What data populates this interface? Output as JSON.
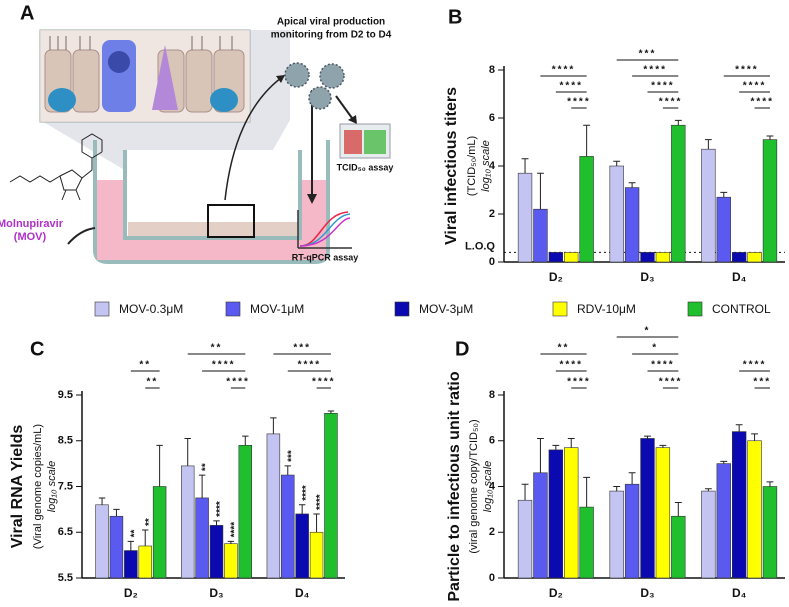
{
  "panel_a": {
    "letter": "A",
    "monitoring": [
      "Apical viral production",
      "monitoring from D2 to D4"
    ],
    "tcid_assay": "TCID₅₀ assay",
    "pcr_assay": "RT-qPCR assay",
    "drug": [
      "Molnupiravir",
      "(MOV)"
    ]
  },
  "chart_data": [
    {
      "type": "bar",
      "panel": "B",
      "y_label": [
        "Viral infectious titers",
        "(TCID₅₀/mL)",
        "log₁₀ scale"
      ],
      "categories": [
        "D₂",
        "D₃",
        "D₄"
      ],
      "ylim": [
        0,
        8
      ],
      "yticks": [
        0,
        2,
        4,
        6,
        8
      ],
      "reference_line": {
        "value": 0.4,
        "label": "L.O.Q"
      },
      "series": [
        {
          "name": "MOV-0.3μM",
          "color": "#c4c4f2",
          "values": [
            3.7,
            4.0,
            4.7
          ],
          "errors": [
            0.6,
            0.2,
            0.4
          ],
          "stars": [
            null,
            null,
            null
          ]
        },
        {
          "name": "MOV-1μM",
          "color": "#5a5af0",
          "values": [
            2.2,
            3.1,
            2.7
          ],
          "errors": [
            1.5,
            0.2,
            0.2
          ],
          "stars": [
            null,
            null,
            null
          ]
        },
        {
          "name": "MOV-3μM",
          "color": "#0a0ab0",
          "values": [
            0.4,
            0.4,
            0.4
          ],
          "errors": [
            0,
            0,
            0
          ],
          "stars": [
            null,
            null,
            null
          ]
        },
        {
          "name": "RDV-10μM",
          "color": "#ffff00",
          "values": [
            0.4,
            0.4,
            0.4
          ],
          "errors": [
            0,
            0,
            0
          ],
          "stars": [
            null,
            null,
            null
          ]
        },
        {
          "name": "CONTROL",
          "color": "#1fbf2e",
          "values": [
            4.4,
            5.7,
            5.1
          ],
          "errors": [
            1.3,
            0.2,
            0.15
          ],
          "stars": [
            null,
            null,
            null
          ]
        }
      ],
      "significance": [
        [
          "****",
          "****",
          "****"
        ],
        [
          "***",
          "****",
          "****",
          "****"
        ],
        [
          "****",
          "****",
          "****"
        ]
      ]
    },
    {
      "type": "bar",
      "panel": "C",
      "y_label": [
        "Viral RNA Yields",
        "(Viral genome copies/mL)",
        "log₁₀ scale"
      ],
      "categories": [
        "D₂",
        "D₃",
        "D₄"
      ],
      "ylim": [
        5.5,
        9.5
      ],
      "yticks": [
        5.5,
        6.5,
        7.5,
        8.5,
        9.5
      ],
      "series": [
        {
          "color": "#c4c4f2",
          "values": [
            7.1,
            7.95,
            8.65
          ],
          "errors": [
            0.15,
            0.6,
            0.35
          ],
          "stars": [
            null,
            null,
            null
          ]
        },
        {
          "color": "#5a5af0",
          "values": [
            6.85,
            7.25,
            7.75
          ],
          "errors": [
            0.15,
            0.5,
            0.2
          ],
          "stars": [
            null,
            "**",
            "***"
          ]
        },
        {
          "color": "#0a0ab0",
          "values": [
            6.1,
            6.65,
            6.9
          ],
          "errors": [
            0.2,
            0.1,
            0.2
          ],
          "stars": [
            "**",
            "****",
            "****"
          ]
        },
        {
          "color": "#ffff00",
          "values": [
            6.2,
            6.25,
            6.5
          ],
          "errors": [
            0.35,
            0.05,
            0.4
          ],
          "stars": [
            "**",
            "****",
            "****"
          ]
        },
        {
          "color": "#1fbf2e",
          "values": [
            7.5,
            8.4,
            9.1
          ],
          "errors": [
            0.9,
            0.2,
            0.05
          ],
          "stars": [
            null,
            null,
            null
          ]
        }
      ],
      "significance": [
        [
          "**",
          "**"
        ],
        [
          "**",
          "****",
          "****"
        ],
        [
          "***",
          "****",
          "****"
        ]
      ]
    },
    {
      "type": "bar",
      "panel": "D",
      "y_label": [
        "Particle to infectious unit ratio",
        "(viral genome copy/TCID₅₀)",
        "log₁₀ scale"
      ],
      "categories": [
        "D₂",
        "D₃",
        "D₄"
      ],
      "ylim": [
        0,
        8
      ],
      "yticks": [
        0,
        2,
        4,
        6,
        8
      ],
      "series": [
        {
          "color": "#c4c4f2",
          "values": [
            3.4,
            3.8,
            3.8
          ],
          "errors": [
            0.7,
            0.2,
            0.1
          ],
          "stars": [
            null,
            null,
            null
          ]
        },
        {
          "color": "#5a5af0",
          "values": [
            4.6,
            4.1,
            5.0
          ],
          "errors": [
            1.5,
            0.5,
            0.1
          ],
          "stars": [
            null,
            null,
            null
          ]
        },
        {
          "color": "#0a0ab0",
          "values": [
            5.6,
            6.1,
            6.4
          ],
          "errors": [
            0.2,
            0.1,
            0.3
          ],
          "stars": [
            null,
            null,
            null
          ]
        },
        {
          "color": "#ffff00",
          "values": [
            5.7,
            5.7,
            6.0
          ],
          "errors": [
            0.4,
            0.1,
            0.3
          ],
          "stars": [
            null,
            null,
            null
          ]
        },
        {
          "color": "#1fbf2e",
          "values": [
            3.1,
            2.7,
            4.0
          ],
          "errors": [
            1.3,
            0.6,
            0.2
          ],
          "stars": [
            null,
            null,
            null
          ]
        }
      ],
      "significance": [
        [
          "**",
          "****",
          "****"
        ],
        [
          "*",
          "*",
          "****",
          "****"
        ],
        [
          "****",
          "***"
        ]
      ]
    }
  ]
}
